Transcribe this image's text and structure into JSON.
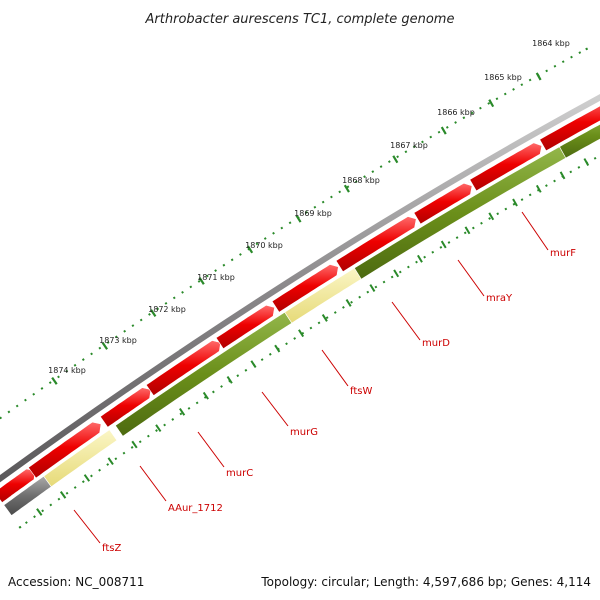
{
  "title": "Arthrobacter aurescens TC1, complete genome",
  "footer": {
    "accession": "Accession: NC_008711",
    "summary": "Topology: circular; Length: 4,597,686 bp; Genes: 4,114"
  },
  "colors": {
    "backbone": "#8a888a",
    "forward_cds": "#ee0000",
    "reverse_cds_green": "#6b8f1a",
    "reverse_cds_yellow": "#f2e98e",
    "reverse_cds_gray": "#6f6f6f",
    "tick": "#2a8a2a",
    "label": "#cc0000"
  },
  "ticks": [
    {
      "label": "1864 kbp"
    },
    {
      "label": "1865 kbp"
    },
    {
      "label": "1866 kbp"
    },
    {
      "label": "1867 kbp"
    },
    {
      "label": "1868 kbp"
    },
    {
      "label": "1869 kbp"
    },
    {
      "label": "1870 kbp"
    },
    {
      "label": "1871 kbp"
    },
    {
      "label": "1872 kbp"
    },
    {
      "label": "1873 kbp"
    },
    {
      "label": "1874 kbp"
    }
  ],
  "gene_labels": [
    {
      "name": "murF"
    },
    {
      "name": "mraY"
    },
    {
      "name": "murD"
    },
    {
      "name": "ftsW"
    },
    {
      "name": "murG"
    },
    {
      "name": "murC"
    },
    {
      "name": "AAur_1712"
    },
    {
      "name": "ftsZ"
    }
  ]
}
